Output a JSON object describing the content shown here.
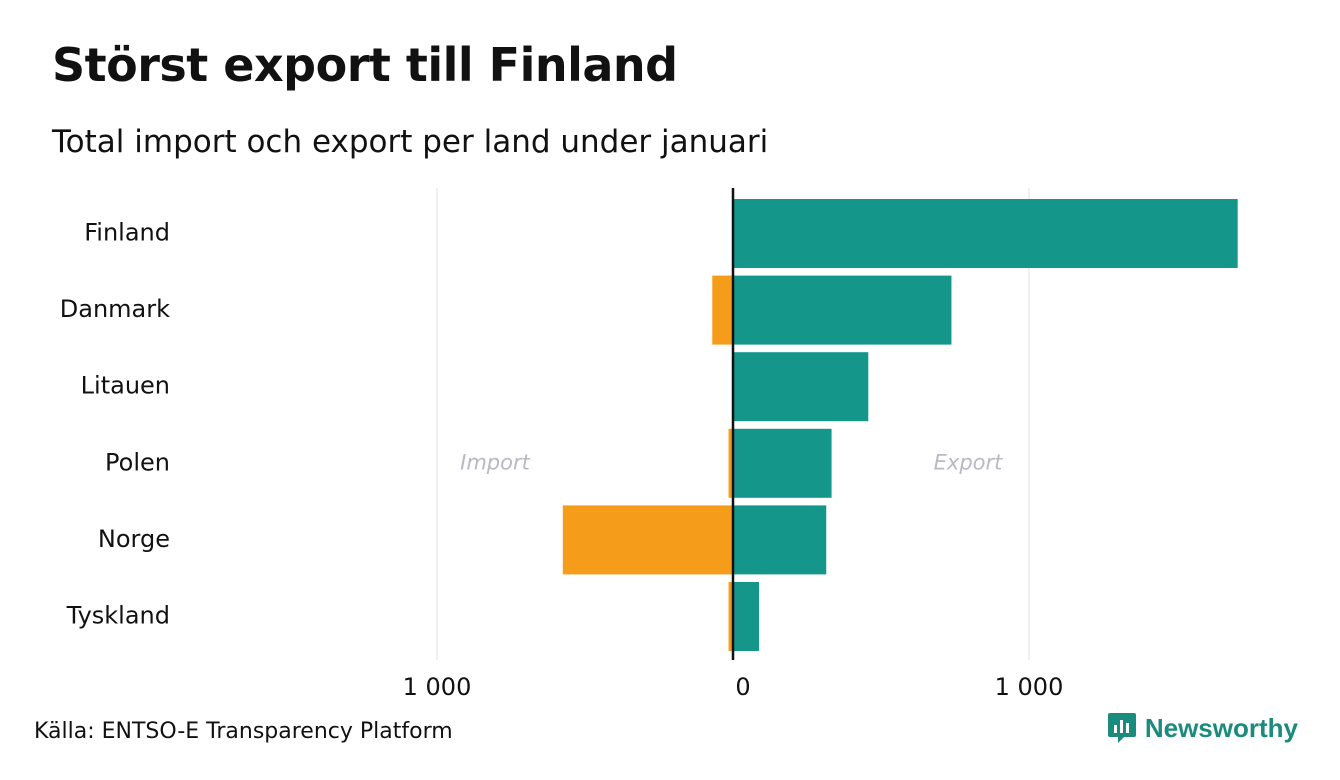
{
  "header": {
    "title": "Störst export till Finland",
    "subtitle": "Total import och export per land under januari"
  },
  "footer": {
    "source": "Källa: ENTSO-E Transparency Platform",
    "brand": "Newsworthy"
  },
  "colors": {
    "export": "#14968a",
    "import": "#f59c1a",
    "grid": "#e6e6e6",
    "zero_line": "#111111",
    "annotation": "#b9b9c6",
    "brand": "#1a8b7c"
  },
  "chart_data": {
    "type": "bar",
    "orientation": "horizontal-diverging",
    "title": "Störst export till Finland",
    "subtitle": "Total import och export per land under januari",
    "categories": [
      "Finland",
      "Danmark",
      "Litauen",
      "Polen",
      "Norge",
      "Tyskland"
    ],
    "series": [
      {
        "name": "Import",
        "values": [
          0,
          -70,
          0,
          -15,
          -575,
          -15
        ]
      },
      {
        "name": "Export",
        "values": [
          1705,
          738,
          457,
          333,
          315,
          88
        ]
      }
    ],
    "annotations": [
      {
        "text": "Import",
        "side": "left",
        "row": "Polen"
      },
      {
        "text": "Export",
        "side": "right",
        "row": "Polen"
      }
    ],
    "xlim": [
      -1000,
      1950
    ],
    "xticks": [
      -1000,
      0,
      1000
    ],
    "xtick_labels": [
      "1 000",
      "0",
      "1 000"
    ],
    "grid": true,
    "xlabel": "",
    "ylabel": ""
  }
}
